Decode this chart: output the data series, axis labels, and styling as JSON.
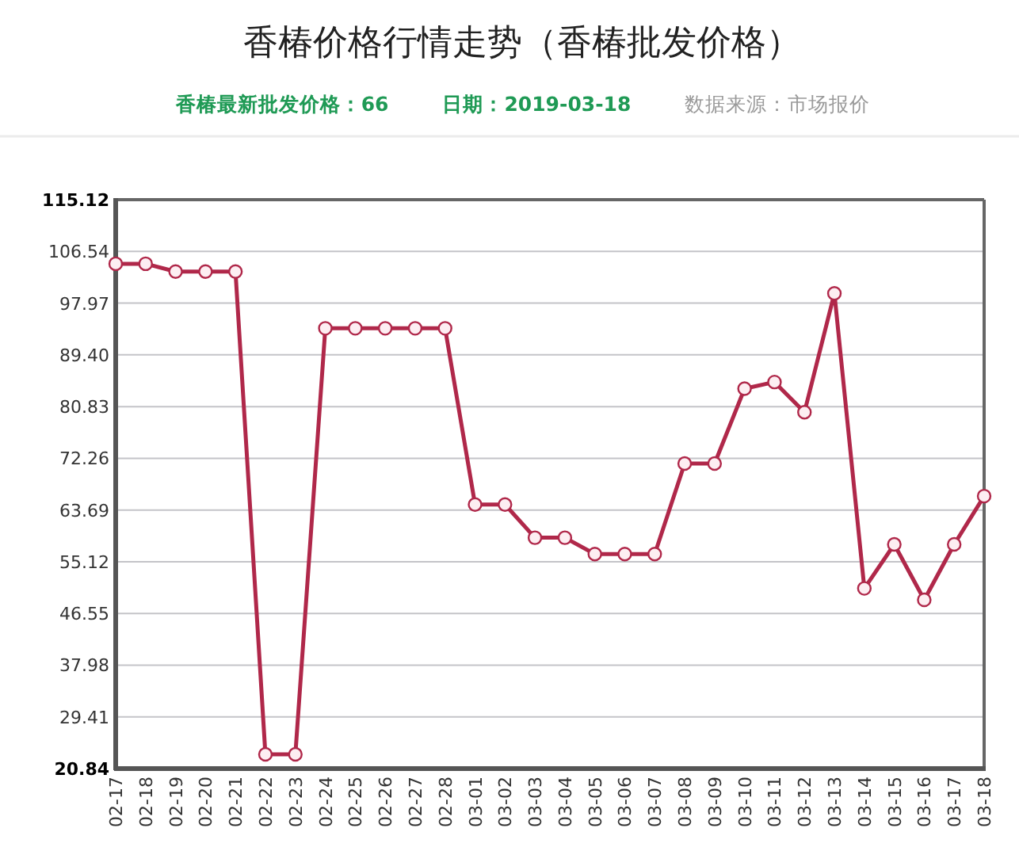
{
  "chart_data": {
    "type": "line",
    "title": "香椿价格行情走势（香椿批发价格）",
    "annotations": [
      "香椿最新批发价格：66",
      "日期：2019-03-18",
      "数据来源：市场报价"
    ],
    "categories": [
      "02-17",
      "02-18",
      "02-19",
      "02-20",
      "02-21",
      "02-22",
      "02-23",
      "02-24",
      "02-25",
      "02-26",
      "02-27",
      "02-28",
      "03-01",
      "03-02",
      "03-03",
      "03-04",
      "03-05",
      "03-06",
      "03-07",
      "03-08",
      "03-09",
      "03-10",
      "03-11",
      "03-12",
      "03-13",
      "03-14",
      "03-15",
      "03-16",
      "03-17",
      "03-18"
    ],
    "series": [
      {
        "color": "#b0284a",
        "values": [
          104.5,
          104.5,
          103.2,
          103.2,
          103.2,
          23.2,
          23.2,
          93.8,
          93.8,
          93.8,
          93.8,
          93.8,
          64.6,
          64.6,
          59.1,
          59.1,
          56.4,
          56.4,
          56.4,
          71.4,
          71.4,
          83.8,
          84.9,
          79.9,
          99.6,
          50.7,
          58.0,
          48.8,
          58.0,
          66.0
        ]
      }
    ],
    "ylim": [
      20.84,
      115.12
    ],
    "yticks": [
      20.84,
      29.41,
      37.98,
      46.55,
      55.12,
      63.69,
      72.26,
      80.83,
      {
        "value": 89.4,
        "label": "89.40"
      },
      97.97,
      106.54,
      115.12
    ],
    "grid": "y",
    "marker": "circle",
    "line_style": "solid"
  }
}
